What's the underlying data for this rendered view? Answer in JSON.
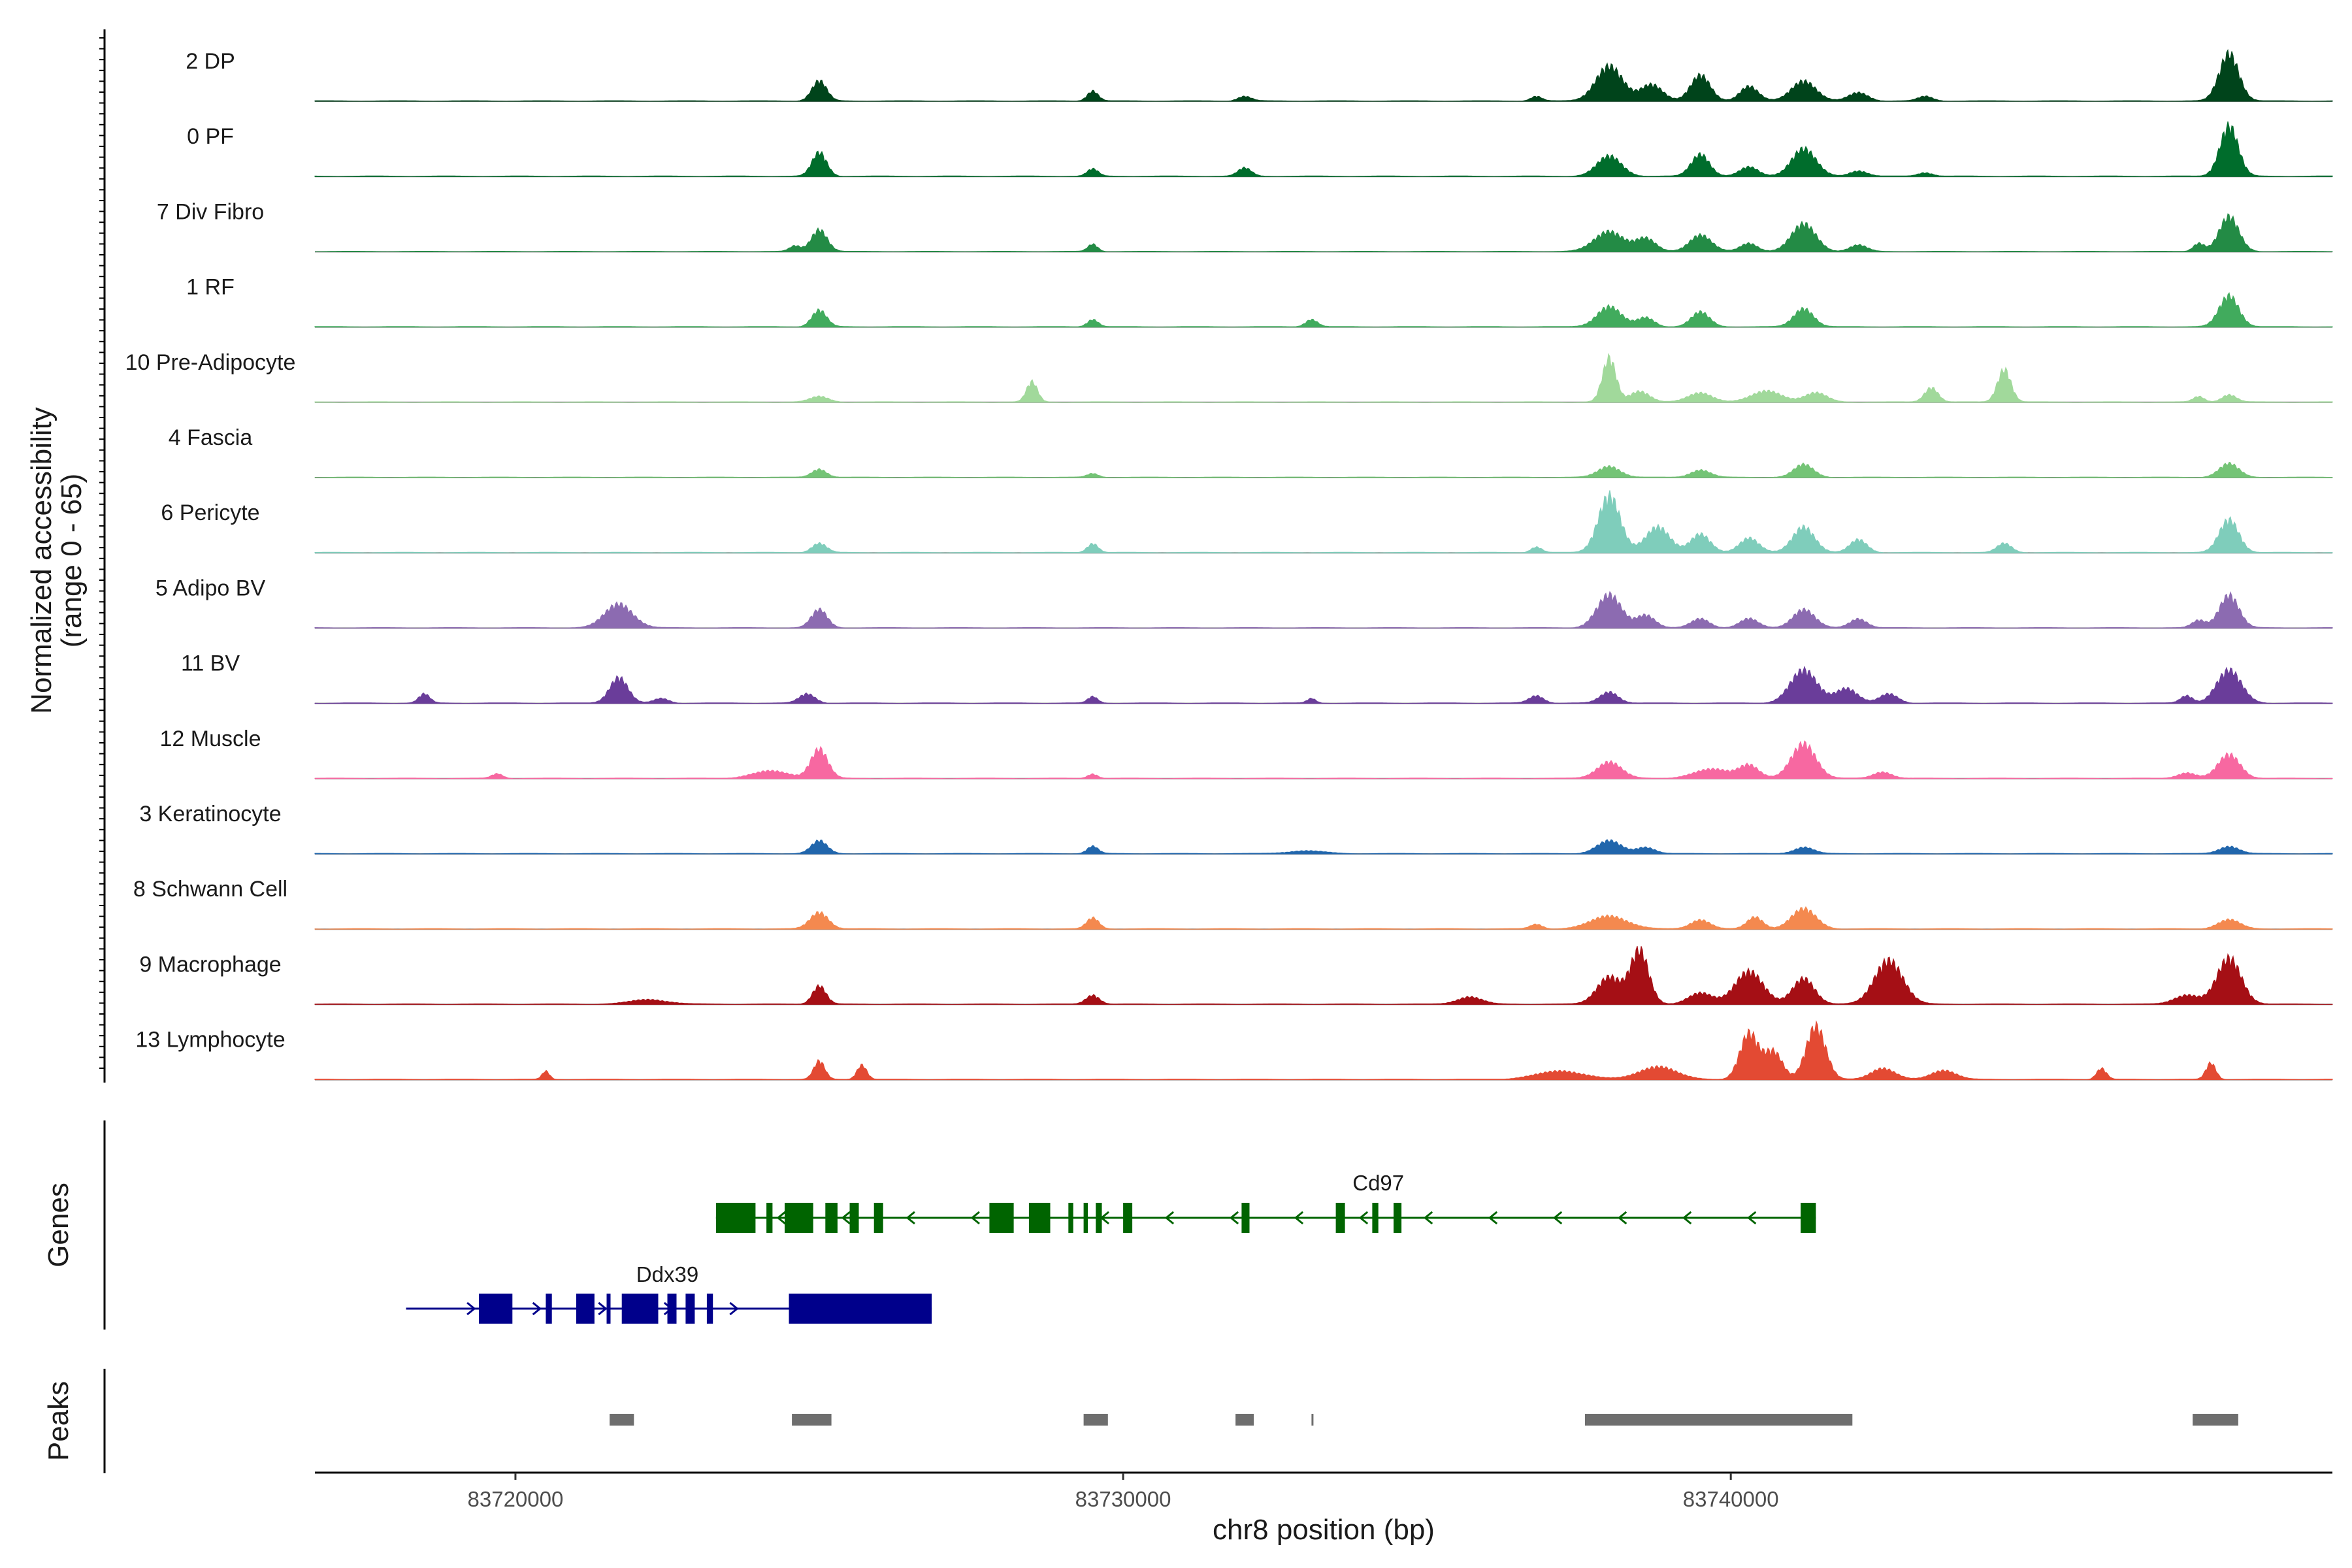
{
  "chart_data": {
    "type": "area",
    "title": "",
    "xlabel": "chr8 position (bp)",
    "ylabel": "Normalized accessibility",
    "ylabel_range": "(range 0 - 65)",
    "ylim": [
      0,
      65
    ],
    "xlim": [
      83716700,
      83749900
    ],
    "x_ticks": [
      83720000,
      83730000,
      83740000
    ],
    "x_tick_labels": [
      "83720000",
      "83730000",
      "83740000"
    ],
    "genes_label": "Genes",
    "peaks_label": "Peaks",
    "tracks": [
      {
        "name": "2 DP",
        "color": "#00441b",
        "peaks": [
          [
            83725000,
            22,
            120
          ],
          [
            83729500,
            11,
            90
          ],
          [
            83732000,
            5,
            110
          ],
          [
            83738000,
            38,
            220
          ],
          [
            83738700,
            18,
            180
          ],
          [
            83739500,
            28,
            160
          ],
          [
            83740300,
            16,
            150
          ],
          [
            83741200,
            22,
            200
          ],
          [
            83742100,
            9,
            160
          ],
          [
            83748200,
            52,
            160
          ],
          [
            83743200,
            5,
            120
          ],
          [
            83736800,
            5,
            90
          ]
        ]
      },
      {
        "name": "0 PF",
        "color": "#006d2c",
        "peaks": [
          [
            83725000,
            26,
            120
          ],
          [
            83729500,
            8,
            90
          ],
          [
            83732000,
            9,
            110
          ],
          [
            83738000,
            22,
            200
          ],
          [
            83739500,
            24,
            150
          ],
          [
            83740300,
            10,
            150
          ],
          [
            83741200,
            30,
            200
          ],
          [
            83748200,
            55,
            150
          ],
          [
            83742100,
            6,
            140
          ],
          [
            83743200,
            4,
            120
          ]
        ]
      },
      {
        "name": "7 Div Fibro",
        "color": "#238b45",
        "peaks": [
          [
            83725000,
            24,
            130
          ],
          [
            83724600,
            6,
            90
          ],
          [
            83729500,
            8,
            80
          ],
          [
            83738000,
            22,
            240
          ],
          [
            83738600,
            14,
            160
          ],
          [
            83739500,
            18,
            180
          ],
          [
            83740300,
            9,
            140
          ],
          [
            83741200,
            30,
            200
          ],
          [
            83742100,
            7,
            140
          ],
          [
            83748200,
            38,
            160
          ],
          [
            83747700,
            9,
            90
          ]
        ]
      },
      {
        "name": "1 RF",
        "color": "#41ab5d",
        "peaks": [
          [
            83725000,
            18,
            120
          ],
          [
            83729500,
            8,
            90
          ],
          [
            83733100,
            8,
            100
          ],
          [
            83738000,
            22,
            200
          ],
          [
            83738600,
            10,
            140
          ],
          [
            83739500,
            16,
            150
          ],
          [
            83741200,
            20,
            160
          ],
          [
            83748200,
            34,
            160
          ]
        ]
      },
      {
        "name": "10 Pre-Adipocyte",
        "color": "#a1d99b",
        "peaks": [
          [
            83725000,
            6,
            150
          ],
          [
            83728500,
            22,
            90
          ],
          [
            83738000,
            48,
            110
          ],
          [
            83738500,
            12,
            160
          ],
          [
            83739500,
            10,
            200
          ],
          [
            83740600,
            12,
            250
          ],
          [
            83741400,
            10,
            180
          ],
          [
            83743300,
            16,
            110
          ],
          [
            83744500,
            36,
            110
          ],
          [
            83748200,
            8,
            120
          ],
          [
            83747700,
            6,
            90
          ]
        ]
      },
      {
        "name": "4 Fascia",
        "color": "#74c476",
        "peaks": [
          [
            83725000,
            9,
            120
          ],
          [
            83729500,
            4,
            90
          ],
          [
            83738000,
            12,
            180
          ],
          [
            83739500,
            8,
            160
          ],
          [
            83741200,
            14,
            160
          ],
          [
            83748200,
            15,
            160
          ]
        ]
      },
      {
        "name": "6 Pericyte",
        "color": "#7fcdbb",
        "peaks": [
          [
            83725000,
            10,
            120
          ],
          [
            83729500,
            10,
            90
          ],
          [
            83738000,
            62,
            180
          ],
          [
            83738800,
            28,
            200
          ],
          [
            83739500,
            20,
            160
          ],
          [
            83740300,
            16,
            160
          ],
          [
            83741200,
            28,
            180
          ],
          [
            83742100,
            14,
            140
          ],
          [
            83744500,
            10,
            120
          ],
          [
            83748200,
            36,
            160
          ],
          [
            83736800,
            6,
            90
          ]
        ]
      },
      {
        "name": "5 Adipo BV",
        "color": "#8c6bb1",
        "peaks": [
          [
            83721700,
            26,
            230
          ],
          [
            83725000,
            20,
            130
          ],
          [
            83738000,
            36,
            200
          ],
          [
            83738600,
            14,
            150
          ],
          [
            83739500,
            10,
            150
          ],
          [
            83740300,
            10,
            150
          ],
          [
            83741200,
            20,
            180
          ],
          [
            83742100,
            10,
            140
          ],
          [
            83748200,
            36,
            160
          ],
          [
            83747700,
            8,
            110
          ]
        ]
      },
      {
        "name": "11 BV",
        "color": "#6a3d9a",
        "peaks": [
          [
            83718500,
            10,
            90
          ],
          [
            83721700,
            28,
            150
          ],
          [
            83722400,
            5,
            120
          ],
          [
            83724800,
            10,
            130
          ],
          [
            83729500,
            7,
            80
          ],
          [
            83733100,
            5,
            70
          ],
          [
            83736800,
            8,
            120
          ],
          [
            83738000,
            12,
            150
          ],
          [
            83741200,
            36,
            220
          ],
          [
            83741900,
            16,
            180
          ],
          [
            83742600,
            10,
            150
          ],
          [
            83748200,
            36,
            200
          ],
          [
            83747500,
            8,
            100
          ]
        ]
      },
      {
        "name": "12 Muscle",
        "color": "#f768a1",
        "peaks": [
          [
            83719700,
            5,
            90
          ],
          [
            83724200,
            8,
            300
          ],
          [
            83725000,
            32,
            140
          ],
          [
            83729500,
            5,
            80
          ],
          [
            83738000,
            18,
            200
          ],
          [
            83739700,
            10,
            300
          ],
          [
            83740300,
            14,
            160
          ],
          [
            83741200,
            38,
            200
          ],
          [
            83742500,
            7,
            150
          ],
          [
            83748200,
            26,
            180
          ],
          [
            83747500,
            6,
            150
          ]
        ]
      },
      {
        "name": "3 Keratinocyte",
        "color": "#2166ac",
        "peaks": [
          [
            83725000,
            14,
            130
          ],
          [
            83729500,
            8,
            90
          ],
          [
            83738000,
            14,
            200
          ],
          [
            83738600,
            7,
            150
          ],
          [
            83741200,
            7,
            160
          ],
          [
            83748200,
            8,
            160
          ],
          [
            83733000,
            3,
            300
          ]
        ]
      },
      {
        "name": "8 Schwann Cell",
        "color": "#f4894f",
        "peaks": [
          [
            83725000,
            18,
            150
          ],
          [
            83729500,
            12,
            100
          ],
          [
            83738000,
            14,
            300
          ],
          [
            83739500,
            10,
            160
          ],
          [
            83740400,
            13,
            130
          ],
          [
            83741200,
            22,
            200
          ],
          [
            83748200,
            10,
            180
          ],
          [
            83736800,
            5,
            100
          ]
        ]
      },
      {
        "name": "9 Macrophage",
        "color": "#a50f15",
        "peaks": [
          [
            83725000,
            20,
            110
          ],
          [
            83729500,
            10,
            110
          ],
          [
            83738000,
            30,
            200
          ],
          [
            83738500,
            58,
            150
          ],
          [
            83739500,
            12,
            200
          ],
          [
            83740300,
            36,
            230
          ],
          [
            83741200,
            28,
            180
          ],
          [
            83742600,
            48,
            230
          ],
          [
            83748200,
            50,
            200
          ],
          [
            83747500,
            10,
            200
          ],
          [
            83735700,
            8,
            200
          ],
          [
            83722200,
            5,
            300
          ]
        ]
      },
      {
        "name": "13 Lymphocyte",
        "color": "#e34a33",
        "peaks": [
          [
            83725000,
            20,
            90
          ],
          [
            83725700,
            16,
            80
          ],
          [
            83720500,
            9,
            60
          ],
          [
            83737200,
            9,
            400
          ],
          [
            83738800,
            14,
            300
          ],
          [
            83740300,
            50,
            150
          ],
          [
            83740700,
            30,
            150
          ],
          [
            83741400,
            58,
            160
          ],
          [
            83742500,
            12,
            200
          ],
          [
            83743500,
            10,
            200
          ],
          [
            83746100,
            12,
            80
          ],
          [
            83747900,
            18,
            80
          ]
        ]
      }
    ],
    "genes": [
      {
        "name": "Cd97",
        "strand": "-",
        "color": "#006400",
        "start": 83723300,
        "end": 83741400,
        "exons": [
          [
            83723300,
            83723950
          ],
          [
            83724130,
            83724230
          ],
          [
            83724430,
            83724900
          ],
          [
            83725100,
            83725300
          ],
          [
            83725500,
            83725650
          ],
          [
            83725900,
            83726050
          ],
          [
            83727800,
            83728200
          ],
          [
            83728450,
            83728800
          ],
          [
            83729100,
            83729180
          ],
          [
            83729350,
            83729420
          ],
          [
            83729550,
            83729650
          ],
          [
            83730000,
            83730150
          ],
          [
            83731950,
            83732080
          ],
          [
            83733500,
            83733650
          ],
          [
            83734100,
            83734200
          ],
          [
            83734450,
            83734580
          ],
          [
            83741150,
            83741400
          ]
        ]
      },
      {
        "name": "Ddx39",
        "strand": "+",
        "color": "#00008b",
        "start": 83718200,
        "end": 83726850,
        "exons": [
          [
            83719400,
            83719950
          ],
          [
            83720500,
            83720600
          ],
          [
            83721000,
            83721300
          ],
          [
            83721500,
            83721550
          ],
          [
            83721750,
            83722350
          ],
          [
            83722500,
            83722650
          ],
          [
            83722800,
            83722950
          ],
          [
            83723150,
            83723250
          ],
          [
            83724500,
            83726850
          ]
        ]
      }
    ],
    "peaks": [
      [
        83721550,
        83721950
      ],
      [
        83724550,
        83725200
      ],
      [
        83729350,
        83729750
      ],
      [
        83731850,
        83732150
      ],
      [
        83733100,
        83733130
      ],
      [
        83737600,
        83742000
      ],
      [
        83747600,
        83748350
      ]
    ]
  }
}
